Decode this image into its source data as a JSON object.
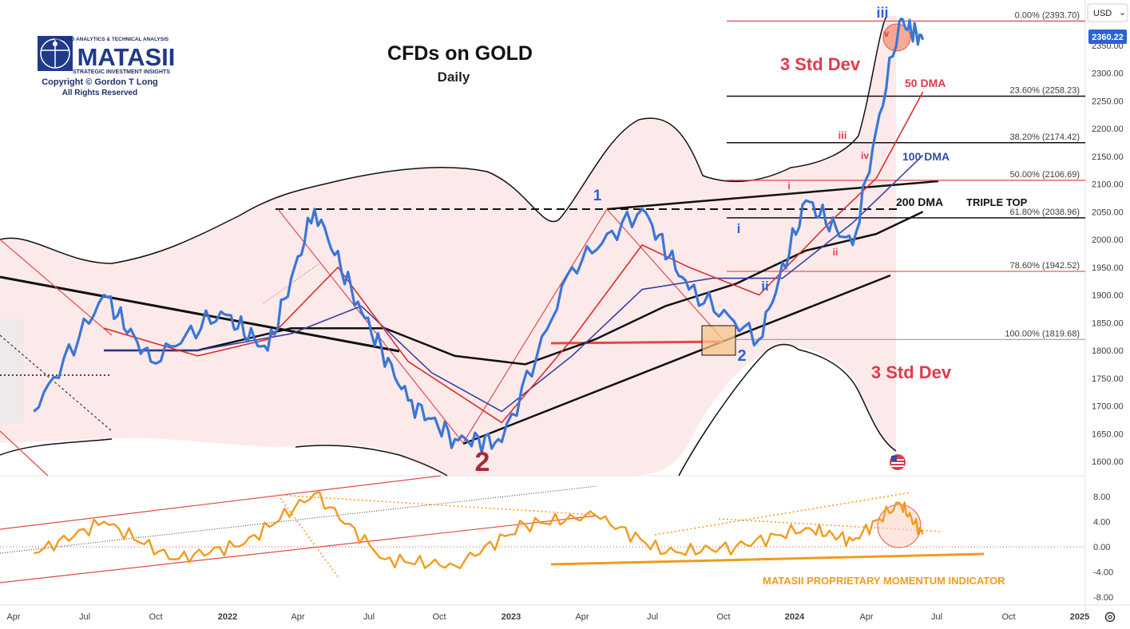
{
  "chart_data": [
    {
      "type": "line",
      "title": "CFDs on GOLD",
      "subtitle": "Daily",
      "currency": "USD",
      "last_price": "2360.22",
      "ylim": [
        1580,
        2410
      ],
      "y_ticks": [
        "2350.00",
        "2300.00",
        "2250.00",
        "2200.00",
        "2150.00",
        "2100.00",
        "2050.00",
        "2000.00",
        "1950.00",
        "1900.00",
        "1850.00",
        "1800.00",
        "1750.00",
        "1700.00",
        "1650.00",
        "1600.00"
      ],
      "x_ticks": [
        "Apr",
        "Jul",
        "Oct",
        "2022",
        "Apr",
        "Jul",
        "Oct",
        "2023",
        "Apr",
        "Jul",
        "Oct",
        "2024",
        "Apr",
        "Jul",
        "Oct",
        "2025"
      ],
      "series": [
        {
          "name": "Gold",
          "color": "#3a76d8",
          "x": [
            "2021-03",
            "2021-06",
            "2021-08",
            "2021-11",
            "2022-01",
            "2022-03",
            "2022-05",
            "2022-07",
            "2022-09",
            "2022-11",
            "2023-02",
            "2023-05",
            "2023-07",
            "2023-10",
            "2023-12",
            "2024-02",
            "2024-04",
            "2024-05"
          ],
          "y": [
            1690,
            1900,
            1780,
            1870,
            1800,
            2055,
            1870,
            1710,
            1640,
            1635,
            1950,
            2055,
            1910,
            1820,
            2070,
            1990,
            2394,
            2360
          ]
        },
        {
          "name": "50 DMA",
          "color": "#e02b2b",
          "x": [
            "2021-06",
            "2021-10",
            "2022-01",
            "2022-04",
            "2022-07",
            "2022-11",
            "2023-02",
            "2023-05",
            "2023-07",
            "2023-10",
            "2024-01",
            "2024-03",
            "2024-05"
          ],
          "y": [
            1840,
            1790,
            1820,
            1950,
            1780,
            1670,
            1820,
            1990,
            1950,
            1900,
            2030,
            2110,
            2266
          ]
        },
        {
          "name": "100 DMA",
          "color": "#3b3fa3",
          "x": [
            "2021-06",
            "2021-10",
            "2022-02",
            "2022-05",
            "2022-08",
            "2022-11",
            "2023-02",
            "2023-05",
            "2023-08",
            "2023-11",
            "2024-02",
            "2024-05"
          ],
          "y": [
            1800,
            1800,
            1830,
            1880,
            1760,
            1690,
            1790,
            1910,
            1930,
            1930,
            2030,
            2152
          ]
        },
        {
          "name": "200 DMA",
          "color": "#111111",
          "x": [
            "2021-06",
            "2021-10",
            "2022-02",
            "2022-06",
            "2022-09",
            "2022-12",
            "2023-03",
            "2023-06",
            "2023-09",
            "2023-12",
            "2024-03",
            "2024-05"
          ],
          "y": [
            1800,
            1800,
            1840,
            1840,
            1790,
            1775,
            1820,
            1880,
            1920,
            1980,
            2010,
            2050
          ]
        }
      ],
      "fibonacci": [
        {
          "label": "0.00% (2393.70)",
          "value": 2393.7,
          "color": "#e34949"
        },
        {
          "label": "23.60% (2258.23)",
          "value": 2258.23,
          "color": "#111111"
        },
        {
          "label": "38.20% (2174.42)",
          "value": 2174.42,
          "color": "#111111"
        },
        {
          "label": "50.00% (2106.69)",
          "value": 2106.69,
          "color": "#e34949"
        },
        {
          "label": "61.80% (2038.96)",
          "value": 2038.96,
          "color": "#111111"
        },
        {
          "label": "78.60% (1942.52)",
          "value": 1942.52,
          "color": "#e34949"
        },
        {
          "label": "100.00% (1819.68)",
          "value": 1819.68,
          "color": "#9a9a9a"
        }
      ],
      "annotations": {
        "std_dev_upper": "3 Std Dev",
        "std_dev_lower": "3 Std Dev",
        "dma_50": "50 DMA",
        "dma_100": "100 DMA",
        "dma_200": "200 DMA",
        "triple_top": "TRIPLE TOP",
        "wave_1": "1",
        "wave_2_major": "2",
        "wave_2": "2",
        "sub_i": "i",
        "sub_ii": "ii",
        "sub_iii": "iii",
        "sub_iv": "iv",
        "sub_v": "v",
        "red_i": "i",
        "red_ii": "ii",
        "red_iii": "iii",
        "red_iv": "iv",
        "red_v": "v"
      }
    },
    {
      "type": "line",
      "title": "MATASII PROPRIETARY MOMENTUM INDICATOR",
      "ylim": [
        -9,
        9.5
      ],
      "y_ticks": [
        "8.00",
        "4.00",
        "0.00",
        "-4.00",
        "-8.00"
      ],
      "series": [
        {
          "name": "Momentum",
          "color": "#f39a1c",
          "x": [
            "2021-03",
            "2021-06",
            "2021-09",
            "2021-12",
            "2022-03",
            "2022-06",
            "2022-09",
            "2022-12",
            "2023-03",
            "2023-06",
            "2023-09",
            "2023-12",
            "2024-02",
            "2024-04",
            "2024-05"
          ],
          "y": [
            -1,
            4,
            -2,
            0.5,
            8.5,
            -2,
            -3,
            3.5,
            5,
            -1,
            0,
            3,
            1,
            7,
            2
          ]
        }
      ]
    }
  ],
  "logo": {
    "tagline": "MACRO ANALYTICS & TECHNICAL ANALYSIS",
    "name": "MATASII",
    "sub": "STRATEGIC INVESTMENT INSIGHTS",
    "copyright": "Copyright © Gordon T Long",
    "rights": "All Rights Reserved"
  },
  "controls": {
    "currency_label": "USD",
    "currency_chevron": "⌄",
    "settings_icon": "gear-icon"
  }
}
